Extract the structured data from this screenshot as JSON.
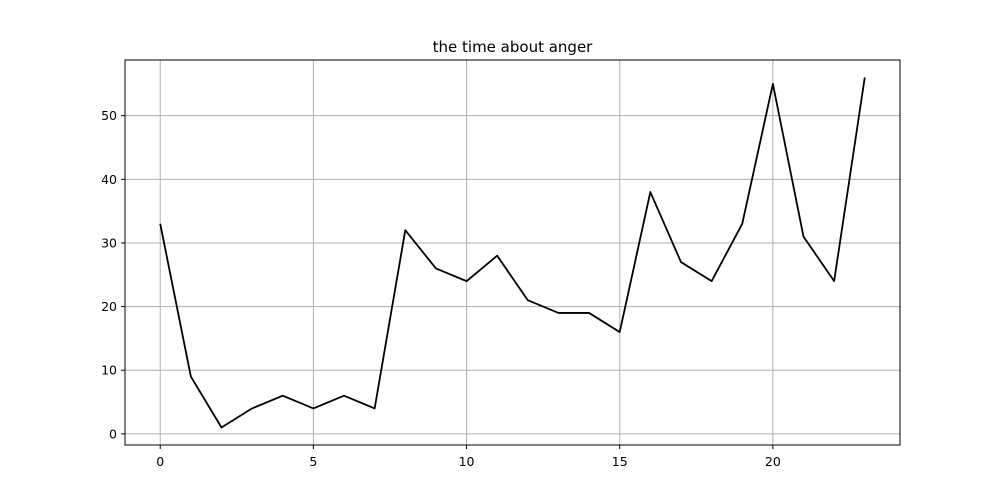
{
  "chart_data": {
    "type": "line",
    "title": "the time about anger",
    "xlabel": "",
    "ylabel": "",
    "x": [
      0,
      1,
      2,
      3,
      4,
      5,
      6,
      7,
      8,
      9,
      10,
      11,
      12,
      13,
      14,
      15,
      16,
      17,
      18,
      19,
      20,
      21,
      22,
      23
    ],
    "series": [
      {
        "values": [
          33,
          9,
          1,
          4,
          6,
          4,
          6,
          4,
          32,
          26,
          24,
          28,
          21,
          19,
          19,
          16,
          38,
          27,
          24,
          33,
          55,
          31,
          24,
          56
        ],
        "color": "#000000"
      }
    ],
    "xlim": [
      -1.15,
      24.15
    ],
    "ylim": [
      -1.75,
      58.75
    ],
    "xticks": [
      0,
      5,
      10,
      15,
      20
    ],
    "yticks": [
      0,
      10,
      20,
      30,
      40,
      50
    ],
    "grid": true
  }
}
